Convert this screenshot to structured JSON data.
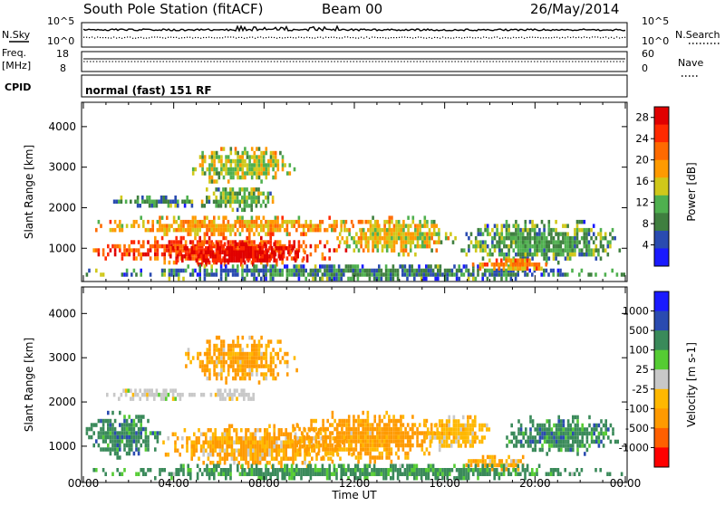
{
  "header": {
    "title": "South Pole Station (fitACF)",
    "beam": "Beam 00",
    "date": "26/May/2014"
  },
  "top_panels": {
    "nsky_label": "N.Sky",
    "nsky_ticks": [
      "10^5",
      "10^0"
    ],
    "nsearch_label": "N.Search",
    "nsearch_ticks": [
      "10^5",
      "10^0"
    ],
    "freq_label_line1": "Freq.",
    "freq_label_line2": "[MHz]",
    "freq_ticks": [
      "18",
      "8"
    ],
    "nave_label": "Nave",
    "nave_ticks": [
      "60",
      "0"
    ],
    "cpid_label": "CPID",
    "cpid_text": "normal (fast) 151 RF"
  },
  "colors": {
    "power_scale": [
      "#1a1aff",
      "#2a4bb0",
      "#3f7f3f",
      "#4fb04f",
      "#d0c81a",
      "#ff9a00",
      "#ff6a00",
      "#ff2a00",
      "#e00000"
    ],
    "velocity_scale": [
      "#ff0000",
      "#ff6000",
      "#ff9a00",
      "#ffb800",
      "#c8c8c8",
      "#55cc33",
      "#3a8a5a",
      "#2a4bb0",
      "#1a1aff"
    ]
  },
  "chart_data": [
    {
      "type": "heatmap",
      "name": "power",
      "xlabel": "",
      "ylabel": "Slant Range [km]",
      "x_ticks": [
        "00:00",
        "04:00",
        "08:00",
        "12:00",
        "16:00",
        "20:00",
        "00:00"
      ],
      "y_ticks": [
        "1000",
        "2000",
        "3000",
        "4000"
      ],
      "xlim_hours": [
        0,
        24
      ],
      "ylim_km": [
        180,
        4600
      ],
      "colorbar": {
        "label": "Power [dB]",
        "ticks": [
          "4",
          "8",
          "12",
          "16",
          "20",
          "24",
          "28"
        ],
        "range": [
          0,
          30
        ]
      },
      "blobs": [
        {
          "t0": 0.0,
          "t1": 11.8,
          "r0": 600,
          "r1": 1300,
          "value": 24
        },
        {
          "t0": 3.5,
          "t1": 10.2,
          "r0": 550,
          "r1": 1150,
          "value": 28
        },
        {
          "t0": 0.0,
          "t1": 13.5,
          "r0": 1300,
          "r1": 1800,
          "value": 18
        },
        {
          "t0": 11.0,
          "t1": 16.5,
          "r0": 800,
          "r1": 1800,
          "value": 16
        },
        {
          "t0": 16.5,
          "t1": 24.0,
          "r0": 600,
          "r1": 1700,
          "value": 10
        },
        {
          "t0": 0.9,
          "t1": 5.5,
          "r0": 2000,
          "r1": 2300,
          "value": 9
        },
        {
          "t0": 5.0,
          "t1": 8.5,
          "r0": 1900,
          "r1": 2600,
          "value": 12
        },
        {
          "t0": 4.5,
          "t1": 9.5,
          "r0": 2600,
          "r1": 3500,
          "value": 14
        },
        {
          "t0": 0.0,
          "t1": 24.0,
          "r0": 200,
          "r1": 600,
          "value": 8
        },
        {
          "t0": 17.0,
          "t1": 21.0,
          "r0": 400,
          "r1": 750,
          "value": 20
        }
      ]
    },
    {
      "type": "heatmap",
      "name": "velocity",
      "xlabel": "Time UT",
      "ylabel": "Slant Range [km]",
      "x_ticks": [
        "00:00",
        "04:00",
        "08:00",
        "12:00",
        "16:00",
        "20:00",
        "00:00"
      ],
      "y_ticks": [
        "1000",
        "2000",
        "3000",
        "4000"
      ],
      "xlim_hours": [
        0,
        24
      ],
      "ylim_km": [
        180,
        4600
      ],
      "colorbar": {
        "label": "Velocity [m s-1]",
        "ticks": [
          "1000",
          "500",
          "100",
          "25",
          "-25",
          "-100",
          "-500",
          "-1000"
        ]
      },
      "blobs": [
        {
          "t0": 0.0,
          "t1": 3.5,
          "r0": 700,
          "r1": 1800,
          "value": 300
        },
        {
          "t0": 3.5,
          "t1": 12.0,
          "r0": 500,
          "r1": 1500,
          "value": -100
        },
        {
          "t0": 9.0,
          "t1": 16.0,
          "r0": 600,
          "r1": 1800,
          "value": -200
        },
        {
          "t0": 15.0,
          "t1": 18.0,
          "r0": 900,
          "r1": 1700,
          "value": -60
        },
        {
          "t0": 18.5,
          "t1": 24.0,
          "r0": 800,
          "r1": 1700,
          "value": 300
        },
        {
          "t0": 16.5,
          "t1": 20.0,
          "r0": 400,
          "r1": 800,
          "value": -100
        },
        {
          "t0": 0.9,
          "t1": 5.5,
          "r0": 2000,
          "r1": 2300,
          "value": 0
        },
        {
          "t0": 5.5,
          "t1": 8.0,
          "r0": 2000,
          "r1": 2300,
          "value": 0
        },
        {
          "t0": 4.5,
          "t1": 9.5,
          "r0": 2400,
          "r1": 3500,
          "value": -150
        },
        {
          "t0": 0.0,
          "t1": 24.0,
          "r0": 200,
          "r1": 600,
          "value": 200
        }
      ]
    }
  ]
}
